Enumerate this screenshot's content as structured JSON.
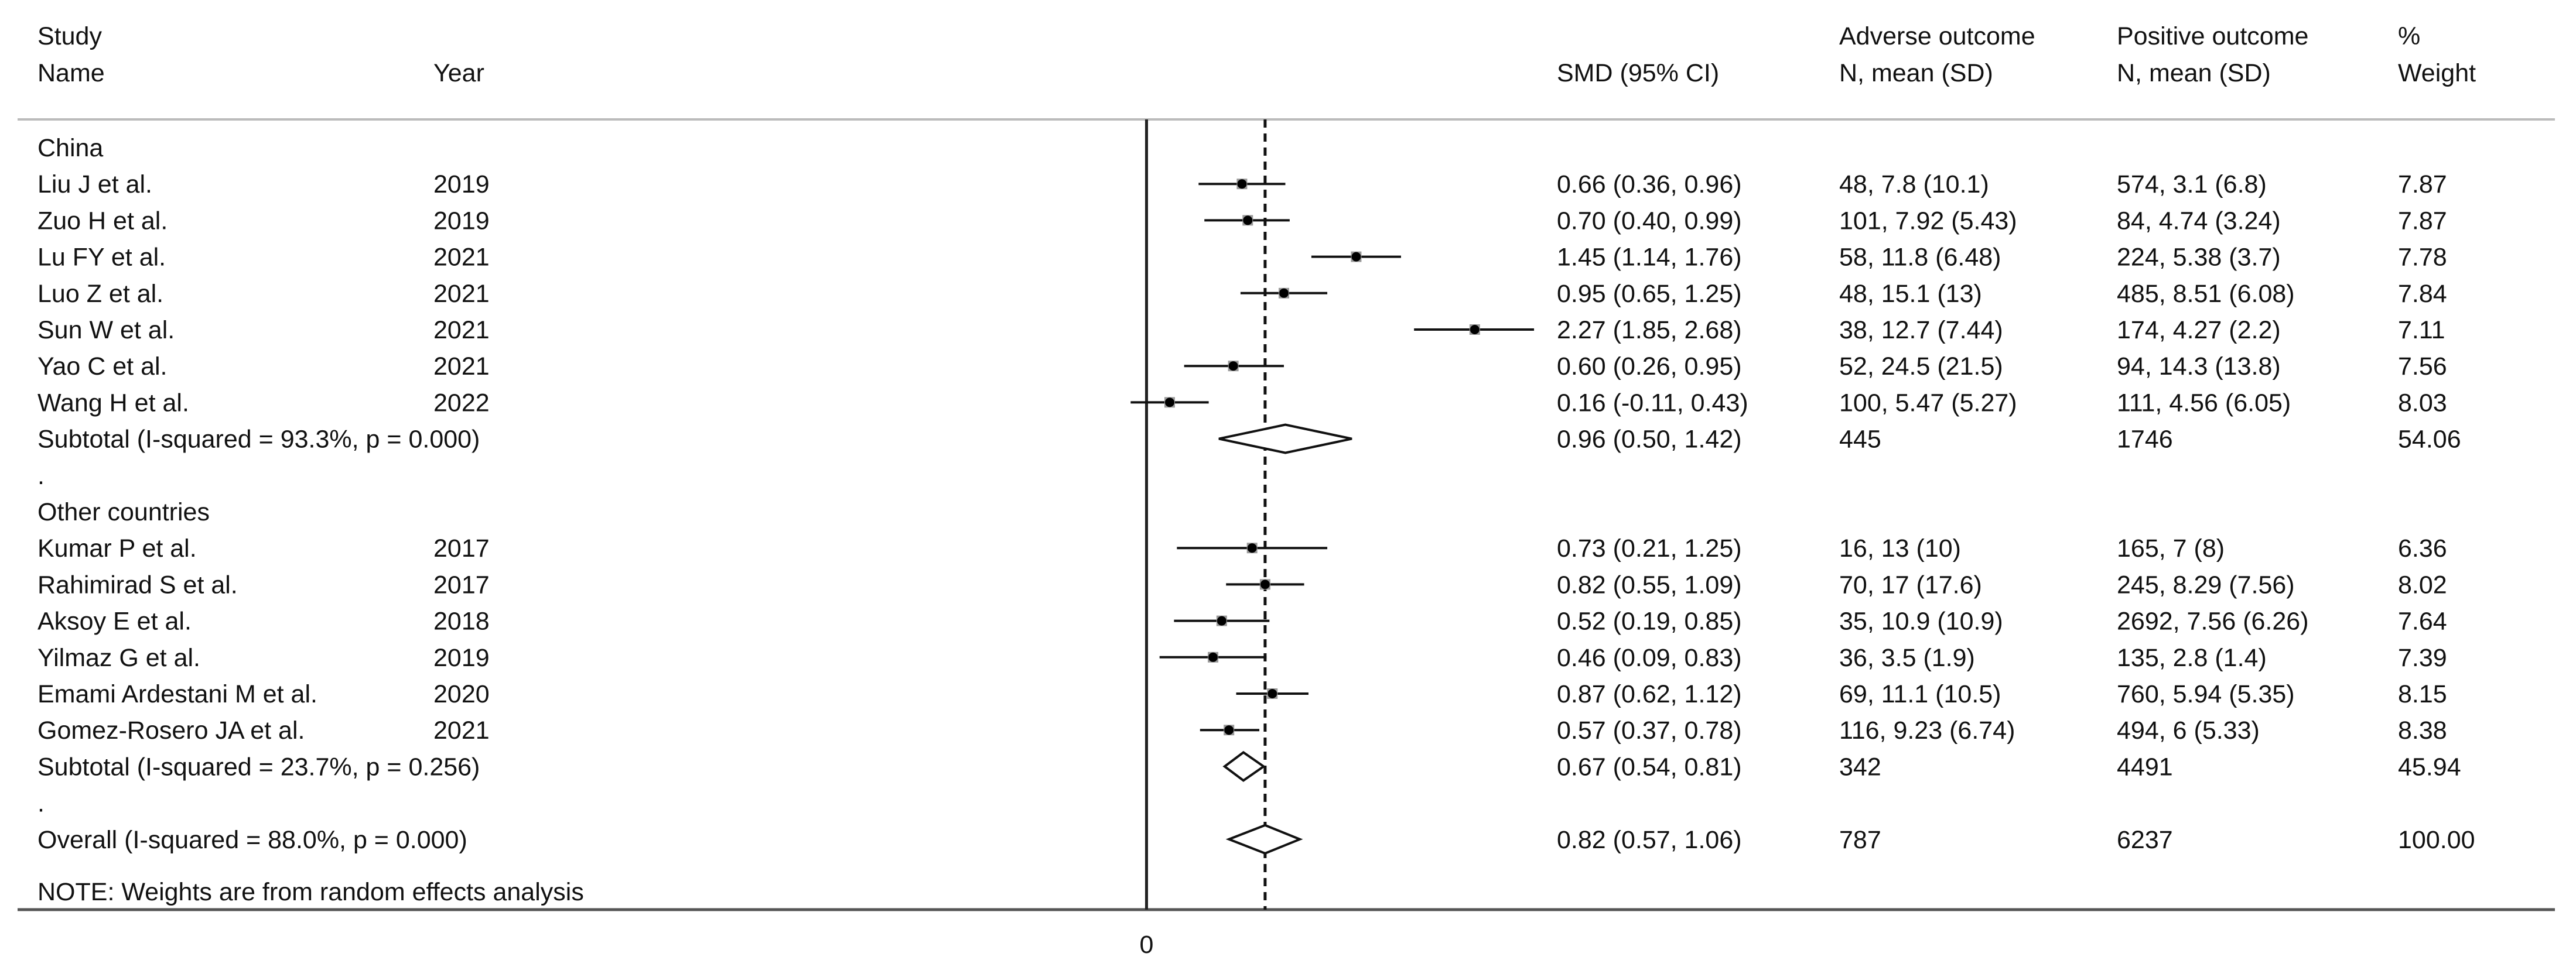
{
  "chart_data": {
    "type": "forest",
    "headers": {
      "study_line1": "Study",
      "study_line2": "Name",
      "year": "Year",
      "effect": "SMD (95% CI)",
      "adverse_line1": "Adverse outcome",
      "adverse_line2": "N, mean (SD)",
      "positive_line1": "Positive outcome",
      "positive_line2": "N, mean (SD)",
      "weight_line1": "%",
      "weight_line2": "Weight"
    },
    "x_axis": {
      "ticks": [
        "0"
      ],
      "range": [
        -0.8,
        2.7
      ],
      "reference_line": 0,
      "overall_effect_line": 0.82
    },
    "rows": [
      {
        "kind": "group",
        "label": "China"
      },
      {
        "kind": "study",
        "name": "Liu J et al.",
        "year": "2019",
        "smd": 0.66,
        "lo": 0.36,
        "hi": 0.96,
        "smd_text": "0.66 (0.36, 0.96)",
        "adverse": "48, 7.8 (10.1)",
        "positive": "574, 3.1 (6.8)",
        "weight": "7.87"
      },
      {
        "kind": "study",
        "name": "Zuo H et al.",
        "year": "2019",
        "smd": 0.7,
        "lo": 0.4,
        "hi": 0.99,
        "smd_text": "0.70 (0.40, 0.99)",
        "adverse": "101, 7.92 (5.43)",
        "positive": "84, 4.74 (3.24)",
        "weight": "7.87"
      },
      {
        "kind": "study",
        "name": "Lu FY et al.",
        "year": "2021",
        "smd": 1.45,
        "lo": 1.14,
        "hi": 1.76,
        "smd_text": "1.45 (1.14, 1.76)",
        "adverse": "58, 11.8 (6.48)",
        "positive": "224, 5.38 (3.7)",
        "weight": "7.78"
      },
      {
        "kind": "study",
        "name": "Luo Z et al.",
        "year": "2021",
        "smd": 0.95,
        "lo": 0.65,
        "hi": 1.25,
        "smd_text": "0.95 (0.65, 1.25)",
        "adverse": "48, 15.1 (13)",
        "positive": "485, 8.51 (6.08)",
        "weight": "7.84"
      },
      {
        "kind": "study",
        "name": "Sun W et al.",
        "year": "2021",
        "smd": 2.27,
        "lo": 1.85,
        "hi": 2.68,
        "smd_text": "2.27 (1.85, 2.68)",
        "adverse": "38, 12.7 (7.44)",
        "positive": "174, 4.27 (2.2)",
        "weight": "7.11"
      },
      {
        "kind": "study",
        "name": "Yao C et al.",
        "year": "2021",
        "smd": 0.6,
        "lo": 0.26,
        "hi": 0.95,
        "smd_text": "0.60 (0.26, 0.95)",
        "adverse": "52, 24.5 (21.5)",
        "positive": "94, 14.3 (13.8)",
        "weight": "7.56"
      },
      {
        "kind": "study",
        "name": "Wang H et al.",
        "year": "2022",
        "smd": 0.16,
        "lo": -0.11,
        "hi": 0.43,
        "smd_text": "0.16 (-0.11, 0.43)",
        "adverse": "100, 5.47 (5.27)",
        "positive": "111, 4.56 (6.05)",
        "weight": "8.03"
      },
      {
        "kind": "subtotal",
        "label": "Subtotal  (I-squared = 93.3%, p = 0.000)",
        "smd": 0.96,
        "lo": 0.5,
        "hi": 1.42,
        "smd_text": "0.96 (0.50, 1.42)",
        "adverse": "445",
        "positive": "1746",
        "weight": "54.06"
      },
      {
        "kind": "dot",
        "label": "."
      },
      {
        "kind": "group",
        "label": "Other countries"
      },
      {
        "kind": "study",
        "name": "Kumar P et al.",
        "year": "2017",
        "smd": 0.73,
        "lo": 0.21,
        "hi": 1.25,
        "smd_text": "0.73 (0.21, 1.25)",
        "adverse": "16, 13 (10)",
        "positive": "165, 7 (8)",
        "weight": "6.36"
      },
      {
        "kind": "study",
        "name": "Rahimirad S et al.",
        "year": "2017",
        "smd": 0.82,
        "lo": 0.55,
        "hi": 1.09,
        "smd_text": "0.82 (0.55, 1.09)",
        "adverse": "70, 17 (17.6)",
        "positive": "245, 8.29 (7.56)",
        "weight": "8.02"
      },
      {
        "kind": "study",
        "name": "Aksoy E et al.",
        "year": "2018",
        "smd": 0.52,
        "lo": 0.19,
        "hi": 0.85,
        "smd_text": "0.52 (0.19, 0.85)",
        "adverse": "35, 10.9 (10.9)",
        "positive": "2692, 7.56 (6.26)",
        "weight": "7.64"
      },
      {
        "kind": "study",
        "name": "Yilmaz G et al.",
        "year": "2019",
        "smd": 0.46,
        "lo": 0.09,
        "hi": 0.83,
        "smd_text": "0.46 (0.09, 0.83)",
        "adverse": "36, 3.5 (1.9)",
        "positive": "135, 2.8 (1.4)",
        "weight": "7.39"
      },
      {
        "kind": "study",
        "name": "Emami Ardestani M et al.",
        "year": "2020",
        "smd": 0.87,
        "lo": 0.62,
        "hi": 1.12,
        "smd_text": "0.87 (0.62, 1.12)",
        "adverse": "69, 11.1 (10.5)",
        "positive": "760, 5.94 (5.35)",
        "weight": "8.15"
      },
      {
        "kind": "study",
        "name": "Gomez-Rosero JA et al.",
        "year": "2021",
        "smd": 0.57,
        "lo": 0.37,
        "hi": 0.78,
        "smd_text": "0.57 (0.37, 0.78)",
        "adverse": "116, 9.23 (6.74)",
        "positive": "494, 6 (5.33)",
        "weight": "8.38"
      },
      {
        "kind": "subtotal",
        "label": "Subtotal  (I-squared = 23.7%, p = 0.256)",
        "smd": 0.67,
        "lo": 0.54,
        "hi": 0.81,
        "smd_text": "0.67 (0.54, 0.81)",
        "adverse": "342",
        "positive": "4491",
        "weight": "45.94"
      },
      {
        "kind": "dot",
        "label": "."
      },
      {
        "kind": "overall",
        "label": "Overall  (I-squared = 88.0%, p = 0.000)",
        "smd": 0.82,
        "lo": 0.57,
        "hi": 1.06,
        "smd_text": "0.82 (0.57, 1.06)",
        "adverse": "787",
        "positive": "6237",
        "weight": "100.00"
      }
    ],
    "note": "NOTE: Weights are from random effects analysis"
  }
}
